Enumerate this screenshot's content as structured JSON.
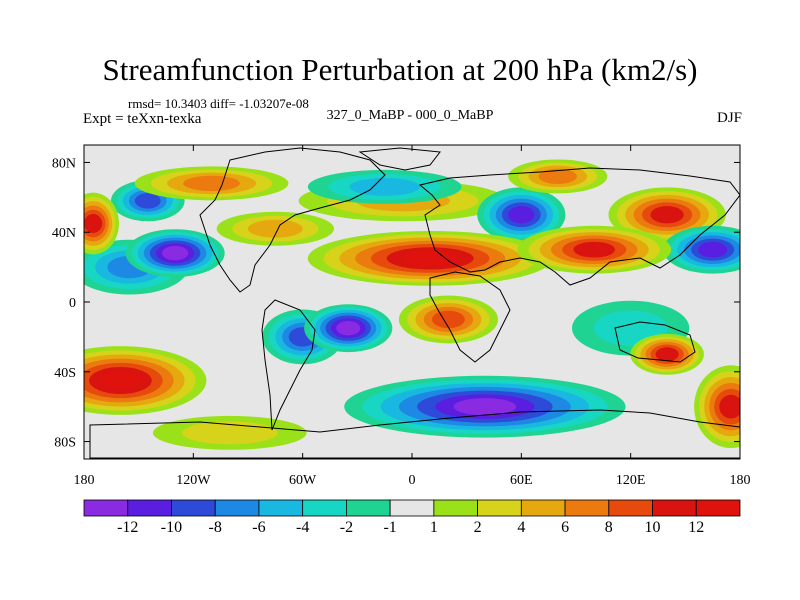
{
  "header": {
    "title": "Streamfunction Perturbation at 200 hPa (km2/s)",
    "stats": "rmsd= 10.3403 diff= -1.03207e-08",
    "experiment": "Expt = teXxn-texka",
    "difference_label": "327_0_MaBP - 000_0_MaBP",
    "season": "DJF"
  },
  "chart_data": {
    "type": "heatmap",
    "title": "Streamfunction Perturbation at 200 hPa (km2/s)",
    "projection": "cylindrical equidistant",
    "xlim": [
      -180,
      180
    ],
    "ylim": [
      -90,
      90
    ],
    "x_ticks": [
      {
        "value": -180,
        "label": "180"
      },
      {
        "value": -120,
        "label": "120W"
      },
      {
        "value": -60,
        "label": "60W"
      },
      {
        "value": 0,
        "label": "0"
      },
      {
        "value": 60,
        "label": "60E"
      },
      {
        "value": 120,
        "label": "120E"
      },
      {
        "value": 180,
        "label": "180"
      }
    ],
    "y_ticks": [
      {
        "value": 80,
        "label": "80N"
      },
      {
        "value": 40,
        "label": "40N"
      },
      {
        "value": 0,
        "label": "0"
      },
      {
        "value": -40,
        "label": "40S"
      },
      {
        "value": -80,
        "label": "80S"
      }
    ],
    "colorbar": {
      "levels": [
        -12,
        -10,
        -8,
        -6,
        -4,
        -2,
        -1,
        1,
        2,
        4,
        6,
        8,
        10,
        12
      ],
      "labels": [
        "-12",
        "-10",
        "-8",
        "-6",
        "-4",
        "-2",
        "-1",
        "1",
        "2",
        "4",
        "6",
        "8",
        "10",
        "12"
      ],
      "colors": [
        "#8a2be2",
        "#5a1ee0",
        "#2e4ad8",
        "#1e88e5",
        "#19b8e0",
        "#18d6c4",
        "#1fd492",
        "#e6e6e6",
        "#9be11a",
        "#d7d21a",
        "#e5a90f",
        "#eb7a0f",
        "#e64a0d",
        "#d9130f",
        "#e0120e"
      ]
    },
    "features": [
      {
        "lon": -145,
        "lat": 58,
        "value": -9,
        "rx": 18,
        "ry": 10
      },
      {
        "lon": -110,
        "lat": 68,
        "value": 7,
        "rx": 40,
        "ry": 8
      },
      {
        "lon": -75,
        "lat": 42,
        "value": 4,
        "rx": 30,
        "ry": 8
      },
      {
        "lon": -155,
        "lat": 20,
        "value": -7,
        "rx": 30,
        "ry": 14
      },
      {
        "lon": -130,
        "lat": 28,
        "value": -12,
        "rx": 25,
        "ry": 12
      },
      {
        "lon": -175,
        "lat": 45,
        "value": 11,
        "rx": 12,
        "ry": 16
      },
      {
        "lon": -5,
        "lat": 58,
        "value": 4,
        "rx": 55,
        "ry": 10
      },
      {
        "lon": -15,
        "lat": 66,
        "value": -4,
        "rx": 40,
        "ry": 8
      },
      {
        "lon": 60,
        "lat": 50,
        "value": -10,
        "rx": 22,
        "ry": 14
      },
      {
        "lon": 80,
        "lat": 72,
        "value": 6,
        "rx": 25,
        "ry": 8
      },
      {
        "lon": 140,
        "lat": 50,
        "value": 11,
        "rx": 30,
        "ry": 14
      },
      {
        "lon": 165,
        "lat": 30,
        "value": -11,
        "rx": 25,
        "ry": 12
      },
      {
        "lon": 10,
        "lat": 25,
        "value": 12,
        "rx": 65,
        "ry": 14
      },
      {
        "lon": 100,
        "lat": 30,
        "value": 11,
        "rx": 40,
        "ry": 12
      },
      {
        "lon": 20,
        "lat": -10,
        "value": 8,
        "rx": 25,
        "ry": 12
      },
      {
        "lon": -160,
        "lat": -45,
        "value": 12,
        "rx": 45,
        "ry": 18
      },
      {
        "lon": -60,
        "lat": -20,
        "value": -8,
        "rx": 20,
        "ry": 14
      },
      {
        "lon": -35,
        "lat": -15,
        "value": -12,
        "rx": 22,
        "ry": 12
      },
      {
        "lon": 40,
        "lat": -60,
        "value": -12,
        "rx": 75,
        "ry": 16
      },
      {
        "lon": 120,
        "lat": -15,
        "value": -3,
        "rx": 30,
        "ry": 14
      },
      {
        "lon": 140,
        "lat": -30,
        "value": 10,
        "rx": 18,
        "ry": 10
      },
      {
        "lon": 175,
        "lat": -60,
        "value": 11,
        "rx": 18,
        "ry": 22
      },
      {
        "lon": -100,
        "lat": -75,
        "value": 3,
        "rx": 40,
        "ry": 8
      }
    ]
  }
}
